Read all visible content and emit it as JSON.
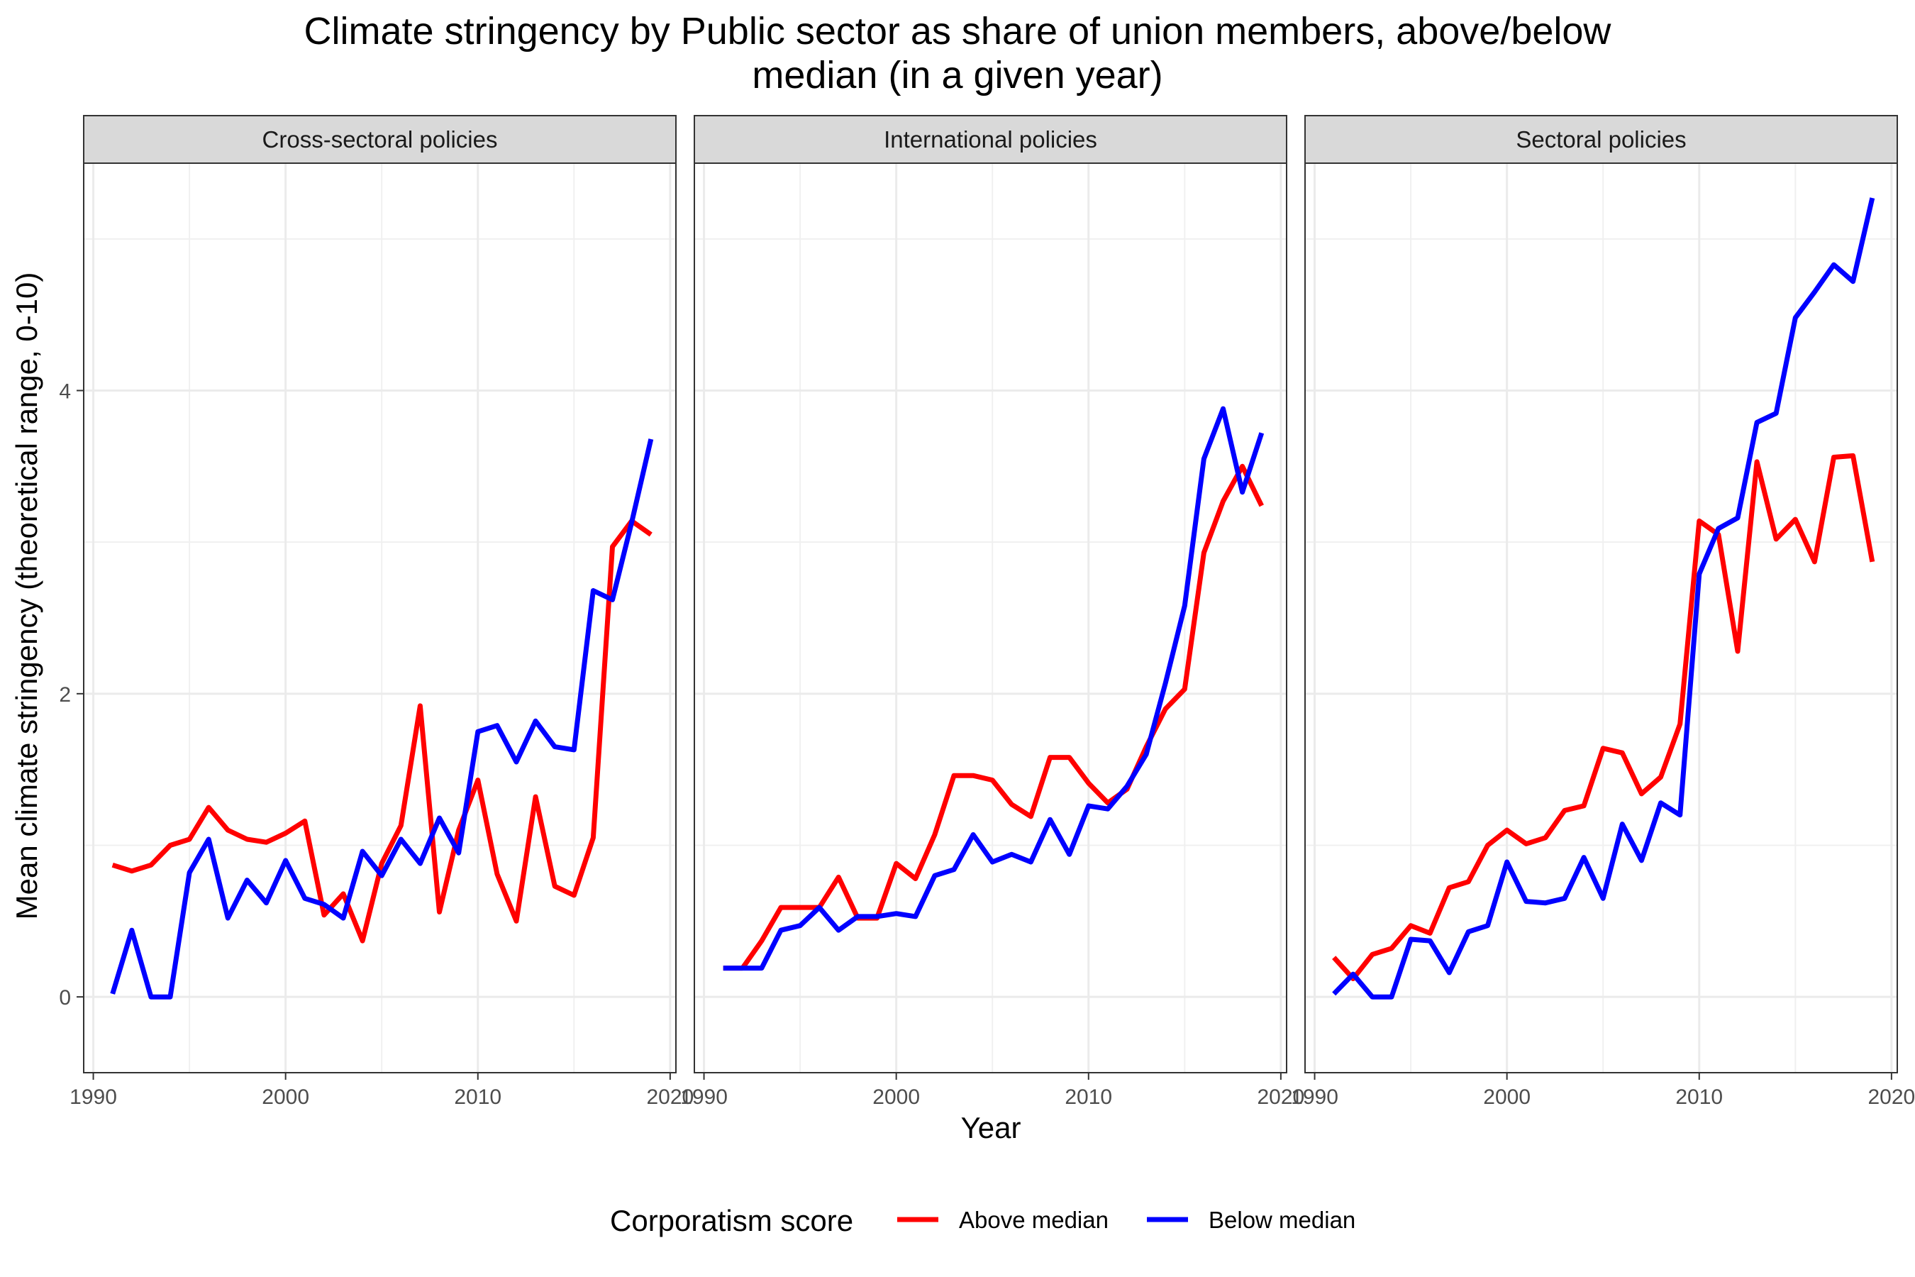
{
  "chart_data": {
    "type": "line",
    "title": "Climate stringency by Public sector as share of union members, above/below median (in a given year)",
    "title_lines": [
      "Climate stringency by Public sector as share of union members, above/below",
      "median (in a given year)"
    ],
    "xlabel": "Year",
    "ylabel": "Mean climate stringency (theoretical range, 0-10)",
    "xlim": [
      1989.5,
      2020.3
    ],
    "ylim": [
      -0.5,
      5.5
    ],
    "xticks": [
      1990,
      2000,
      2010,
      2020
    ],
    "yticks": [
      0,
      2,
      4
    ],
    "x_tick_labels": [
      "1990",
      "2000",
      "2010",
      "2020"
    ],
    "y_tick_labels": [
      "0",
      "2",
      "4"
    ],
    "grid": true,
    "legend": {
      "title": "Corporatism score",
      "position": "bottom",
      "entries": [
        {
          "label": "Above median",
          "color": "#ff0000"
        },
        {
          "label": "Below median",
          "color": "#0000ff"
        }
      ]
    },
    "panels": [
      {
        "name": "Cross-sectoral policies",
        "series": [
          {
            "name": "Above median",
            "color": "#ff0000",
            "x": [
              1991,
              1992,
              1993,
              1994,
              1995,
              1996,
              1997,
              1998,
              1999,
              2000,
              2001,
              2002,
              2003,
              2004,
              2005,
              2006,
              2007,
              2008,
              2009,
              2010,
              2011,
              2012,
              2013,
              2014,
              2015,
              2016,
              2017,
              2018,
              2019
            ],
            "y": [
              0.87,
              0.83,
              0.87,
              1.0,
              1.04,
              1.25,
              1.1,
              1.04,
              1.02,
              1.08,
              1.16,
              0.54,
              0.68,
              0.37,
              0.88,
              1.13,
              1.92,
              0.56,
              1.1,
              1.43,
              0.81,
              0.5,
              1.32,
              0.73,
              0.67,
              1.05,
              2.97,
              3.14,
              3.05
            ]
          },
          {
            "name": "Below median",
            "color": "#0000ff",
            "x": [
              1991,
              1992,
              1993,
              1994,
              1995,
              1996,
              1997,
              1998,
              1999,
              2000,
              2001,
              2002,
              2003,
              2004,
              2005,
              2006,
              2007,
              2008,
              2009,
              2010,
              2011,
              2012,
              2013,
              2014,
              2015,
              2016,
              2017,
              2018,
              2019
            ],
            "y": [
              0.02,
              0.44,
              0.0,
              0.0,
              0.82,
              1.04,
              0.52,
              0.77,
              0.62,
              0.9,
              0.65,
              0.61,
              0.52,
              0.96,
              0.8,
              1.04,
              0.88,
              1.18,
              0.95,
              1.75,
              1.79,
              1.55,
              1.82,
              1.65,
              1.63,
              2.68,
              2.62,
              3.13,
              3.68
            ]
          }
        ]
      },
      {
        "name": "International policies",
        "series": [
          {
            "name": "Above median",
            "color": "#ff0000",
            "x": [
              1991,
              1992,
              1993,
              1994,
              1995,
              1996,
              1997,
              1998,
              1999,
              2000,
              2001,
              2002,
              2003,
              2004,
              2005,
              2006,
              2007,
              2008,
              2009,
              2010,
              2011,
              2012,
              2013,
              2014,
              2015,
              2016,
              2017,
              2018,
              2019
            ],
            "y": [
              0.19,
              0.19,
              0.37,
              0.59,
              0.59,
              0.59,
              0.79,
              0.52,
              0.52,
              0.88,
              0.78,
              1.07,
              1.46,
              1.46,
              1.43,
              1.27,
              1.19,
              1.58,
              1.58,
              1.41,
              1.28,
              1.37,
              1.65,
              1.9,
              2.03,
              2.93,
              3.27,
              3.5,
              3.24
            ]
          },
          {
            "name": "Below median",
            "color": "#0000ff",
            "x": [
              1991,
              1992,
              1993,
              1994,
              1995,
              1996,
              1997,
              1998,
              1999,
              2000,
              2001,
              2002,
              2003,
              2004,
              2005,
              2006,
              2007,
              2008,
              2009,
              2010,
              2011,
              2012,
              2013,
              2014,
              2015,
              2016,
              2017,
              2018,
              2019
            ],
            "y": [
              0.19,
              0.19,
              0.19,
              0.44,
              0.47,
              0.59,
              0.44,
              0.53,
              0.53,
              0.55,
              0.53,
              0.8,
              0.84,
              1.07,
              0.89,
              0.94,
              0.89,
              1.17,
              0.94,
              1.26,
              1.24,
              1.39,
              1.6,
              2.07,
              2.58,
              3.55,
              3.88,
              3.33,
              3.72
            ]
          }
        ]
      },
      {
        "name": "Sectoral policies",
        "series": [
          {
            "name": "Above median",
            "color": "#ff0000",
            "x": [
              1991,
              1992,
              1993,
              1994,
              1995,
              1996,
              1997,
              1998,
              1999,
              2000,
              2001,
              2002,
              2003,
              2004,
              2005,
              2006,
              2007,
              2008,
              2009,
              2010,
              2011,
              2012,
              2013,
              2014,
              2015,
              2016,
              2017,
              2018,
              2019
            ],
            "y": [
              0.26,
              0.12,
              0.28,
              0.32,
              0.47,
              0.42,
              0.72,
              0.76,
              1.0,
              1.1,
              1.01,
              1.05,
              1.23,
              1.26,
              1.64,
              1.61,
              1.34,
              1.45,
              1.8,
              3.14,
              3.05,
              2.28,
              3.53,
              3.02,
              3.15,
              2.87,
              3.56,
              3.57,
              2.87
            ]
          },
          {
            "name": "Below median",
            "color": "#0000ff",
            "x": [
              1991,
              1992,
              1993,
              1994,
              1995,
              1996,
              1997,
              1998,
              1999,
              2000,
              2001,
              2002,
              2003,
              2004,
              2005,
              2006,
              2007,
              2008,
              2009,
              2010,
              2011,
              2012,
              2013,
              2014,
              2015,
              2016,
              2017,
              2018,
              2019
            ],
            "y": [
              0.02,
              0.15,
              0.0,
              0.0,
              0.38,
              0.37,
              0.16,
              0.43,
              0.47,
              0.89,
              0.63,
              0.62,
              0.65,
              0.92,
              0.65,
              1.14,
              0.9,
              1.28,
              1.2,
              2.79,
              3.09,
              3.16,
              3.79,
              3.85,
              4.48,
              4.65,
              4.83,
              4.72,
              5.27
            ]
          }
        ]
      }
    ]
  }
}
